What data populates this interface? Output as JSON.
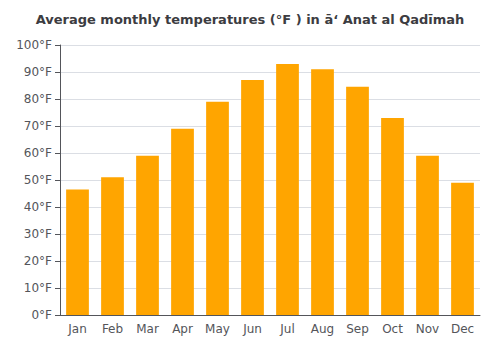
{
  "chart_data": {
    "type": "bar",
    "title": "Average monthly temperatures (°F ) in ā‘ Anat al Qadīmah",
    "categories": [
      "Jan",
      "Feb",
      "Mar",
      "Apr",
      "May",
      "Jun",
      "Jul",
      "Aug",
      "Sep",
      "Oct",
      "Nov",
      "Dec"
    ],
    "values": [
      46.5,
      51,
      59,
      69,
      79,
      87,
      93,
      91,
      84.5,
      73,
      59,
      49
    ],
    "color": "#FFA500",
    "ylim": [
      0,
      100
    ],
    "yticks": [
      {
        "value": 0,
        "label": "0°F"
      },
      {
        "value": 10,
        "label": "10°F"
      },
      {
        "value": 20,
        "label": "20°F"
      },
      {
        "value": 30,
        "label": "30°F"
      },
      {
        "value": 40,
        "label": "40°F"
      },
      {
        "value": 50,
        "label": "50°F"
      },
      {
        "value": 60,
        "label": "60°F"
      },
      {
        "value": 70,
        "label": "70°F"
      },
      {
        "value": 80,
        "label": "80°F"
      },
      {
        "value": 90,
        "label": "90°F"
      },
      {
        "value": 100,
        "label": "100°F"
      }
    ],
    "grid": true
  }
}
